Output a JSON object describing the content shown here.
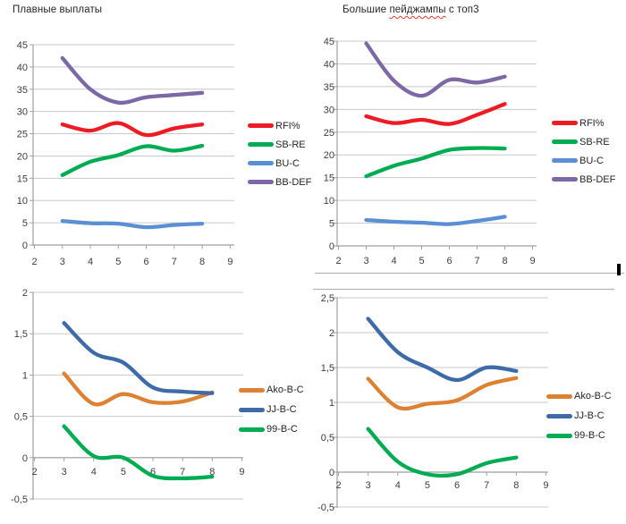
{
  "page": {
    "background": "#ffffff"
  },
  "palette": {
    "gridline": "#c9c9c9",
    "axis": "#9f9f9f",
    "tick_text": "#3d3d3d",
    "title_text": "#262626",
    "spellcheck_red": "#e03c31",
    "border_line": "#b3b3b3",
    "selection_handle": "#000000"
  },
  "chart_data": [
    {
      "id": "top-left",
      "type": "line",
      "smooth": true,
      "title": "Плавные выплаты",
      "x": [
        3,
        4,
        5,
        6,
        7,
        8
      ],
      "x_tick_labels": [
        "2",
        "3",
        "4",
        "5",
        "6",
        "7",
        "8",
        "9"
      ],
      "xlim": [
        2,
        9
      ],
      "ylim": [
        0,
        45
      ],
      "y_step": 5,
      "y_tick_labels": [
        "45",
        "40",
        "35",
        "30",
        "25",
        "20",
        "15",
        "10",
        "5",
        "0"
      ],
      "grid": true,
      "legend_position": "right",
      "series": [
        {
          "name": "RFI%",
          "color": "#ed1c24",
          "values": [
            27.1,
            25.7,
            27.4,
            24.7,
            26.2,
            27.1
          ]
        },
        {
          "name": "SB-RE",
          "color": "#00ac52",
          "values": [
            15.7,
            18.7,
            20.2,
            22.2,
            21.2,
            22.3
          ]
        },
        {
          "name": "BU-C",
          "color": "#5b8fd4",
          "values": [
            5.4,
            4.9,
            4.8,
            4.0,
            4.5,
            4.8
          ]
        },
        {
          "name": "BB-DEF",
          "color": "#7c68a6",
          "values": [
            42.0,
            35.0,
            32.0,
            33.2,
            33.7,
            34.2
          ]
        }
      ]
    },
    {
      "id": "top-right",
      "type": "line",
      "smooth": true,
      "title": "Большие пейджампы с топ3",
      "title_parts": [
        {
          "text": "Большие ",
          "spellcheck_squiggle": false
        },
        {
          "text": "пейджампы",
          "spellcheck_squiggle": true
        },
        {
          "text": " с топ3",
          "spellcheck_squiggle": false
        }
      ],
      "x": [
        3,
        4,
        5,
        6,
        7,
        8
      ],
      "x_tick_labels": [
        "2",
        "3",
        "4",
        "5",
        "6",
        "7",
        "8",
        "9"
      ],
      "xlim": [
        2,
        9
      ],
      "ylim": [
        0,
        45
      ],
      "y_step": 5,
      "y_tick_labels": [
        "45",
        "40",
        "35",
        "30",
        "25",
        "20",
        "15",
        "10",
        "5",
        "0"
      ],
      "grid": true,
      "legend_position": "right",
      "series": [
        {
          "name": "RFI%",
          "color": "#ed1c24",
          "values": [
            28.5,
            27.0,
            27.7,
            26.8,
            28.8,
            31.2
          ]
        },
        {
          "name": "SB-RE",
          "color": "#00ac52",
          "values": [
            15.3,
            17.6,
            19.2,
            21.1,
            21.5,
            21.4
          ]
        },
        {
          "name": "BU-C",
          "color": "#5b8fd4",
          "values": [
            5.7,
            5.3,
            5.1,
            4.8,
            5.5,
            6.4
          ]
        },
        {
          "name": "BB-DEF",
          "color": "#7c68a6",
          "values": [
            44.5,
            36.3,
            33.0,
            36.5,
            35.9,
            37.2
          ]
        }
      ]
    },
    {
      "id": "bottom-left",
      "type": "line",
      "smooth": true,
      "title": "",
      "x": [
        3,
        4,
        5,
        6,
        7,
        8
      ],
      "x_tick_labels": [
        "2",
        "3",
        "4",
        "5",
        "6",
        "7",
        "8",
        "9"
      ],
      "xlim": [
        2,
        9
      ],
      "ylim": [
        -0.5,
        2
      ],
      "y_step": 0.5,
      "y_tick_labels": [
        "2",
        "1,5",
        "1",
        "0,5",
        "0",
        "-0,5"
      ],
      "grid": true,
      "legend_position": "right",
      "series": [
        {
          "name": "Ako-B-C",
          "color": "#dd8133",
          "values": [
            1.02,
            0.65,
            0.77,
            0.67,
            0.68,
            0.79
          ]
        },
        {
          "name": "JJ-B-C",
          "color": "#3e6ba8",
          "values": [
            1.63,
            1.27,
            1.15,
            0.85,
            0.8,
            0.78
          ]
        },
        {
          "name": "99-B-C",
          "color": "#00ac52",
          "values": [
            0.38,
            0.02,
            0.0,
            -0.22,
            -0.25,
            -0.23
          ]
        }
      ]
    },
    {
      "id": "bottom-right",
      "type": "line",
      "smooth": true,
      "title": "",
      "x": [
        3,
        4,
        5,
        6,
        7,
        8
      ],
      "x_tick_labels": [
        "2",
        "3",
        "4",
        "5",
        "6",
        "7",
        "8",
        "9"
      ],
      "xlim": [
        2,
        9
      ],
      "ylim": [
        -0.5,
        2.5
      ],
      "y_step": 0.5,
      "y_tick_labels": [
        "2,5",
        "2",
        "1,5",
        "1",
        "0,5",
        "0",
        "-0,5"
      ],
      "grid": true,
      "legend_position": "right",
      "series": [
        {
          "name": "Ako-B-C",
          "color": "#dd8133",
          "values": [
            1.34,
            0.93,
            0.98,
            1.03,
            1.25,
            1.35
          ]
        },
        {
          "name": "JJ-B-C",
          "color": "#3e6ba8",
          "values": [
            2.2,
            1.72,
            1.5,
            1.32,
            1.5,
            1.45
          ]
        },
        {
          "name": "99-B-C",
          "color": "#00ac52",
          "values": [
            0.62,
            0.15,
            -0.03,
            -0.03,
            0.13,
            0.21
          ]
        }
      ]
    }
  ]
}
